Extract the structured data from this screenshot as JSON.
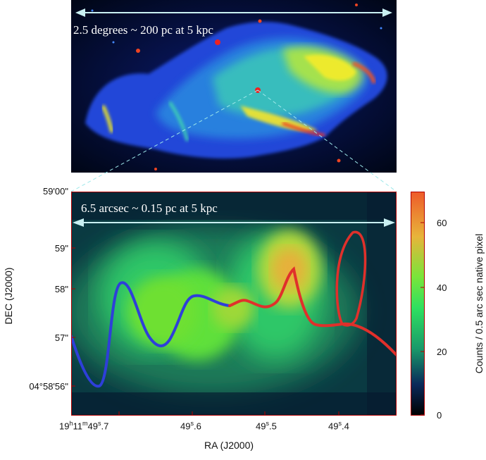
{
  "top_image": {
    "annotation": "2.5 degrees ~ 200 pc at 5 kpc",
    "colormap": [
      "#000820",
      "#1a33d6",
      "#33d1e6",
      "#46d436",
      "#f7f21a",
      "#ee3322"
    ]
  },
  "main_panel": {
    "annotation": "6.5 arcsec ~ 0.15 pc at 5 kpc",
    "y_tick_labels": [
      "59'00\"",
      "59\"",
      "58\"",
      "57\"",
      "04°58'56\""
    ],
    "x_tick_labels": {
      "first_prefix": "19",
      "first_h": "h",
      "first_mid": "11",
      "first_m": "m",
      "first_mid2": "49",
      "first_s": "s",
      "first_suffix": ".7",
      "others": [
        {
          "main": "49",
          "sup": "s",
          "rest": ".6"
        },
        {
          "main": "49",
          "sup": "s",
          "rest": ".5"
        },
        {
          "main": "49",
          "sup": "s",
          "rest": ".4"
        }
      ]
    },
    "x_axis_label": "RA (J2000)",
    "y_axis_label": "DEC (J2000)",
    "curve_colors": {
      "blue": "#2e3fd9",
      "red": "#e0302b",
      "arrow": "#c9f0f2"
    }
  },
  "colorbar": {
    "ticks": [
      "0",
      "20",
      "40",
      "60"
    ],
    "label": "Counts / 0.5 arc sec native pixel",
    "range": [
      0,
      70
    ]
  }
}
